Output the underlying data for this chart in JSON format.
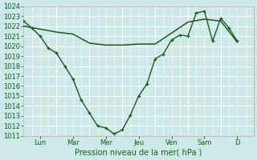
{
  "background_color": "#cde8e8",
  "grid_color_major": "#ffffff",
  "grid_color_minor": "#ddeaea",
  "line_color": "#1a5c1a",
  "ylabel": "Pression niveau de la mer( hPa )",
  "ylim": [
    1011,
    1024
  ],
  "yticks": [
    1011,
    1012,
    1013,
    1014,
    1015,
    1016,
    1017,
    1018,
    1019,
    1020,
    1021,
    1022,
    1023,
    1024
  ],
  "day_labels": [
    "Lun",
    "Mar",
    "Mer",
    "Jeu",
    "Ven",
    "Sam",
    "D"
  ],
  "day_tick_positions": [
    0.5,
    1.5,
    2.5,
    3.5,
    4.5,
    5.5,
    6.5
  ],
  "vline_positions": [
    0,
    1,
    2,
    3,
    4,
    5,
    6,
    7
  ],
  "x_zigzag": [
    0.0,
    0.25,
    0.5,
    0.75,
    1.0,
    1.25,
    1.5,
    1.75,
    2.0,
    2.25,
    2.5,
    2.75,
    3.0,
    3.25,
    3.5,
    3.75,
    4.0,
    4.25,
    4.5,
    4.75,
    5.0,
    5.25,
    5.5,
    5.75,
    6.0,
    6.25,
    6.5
  ],
  "y_zigzag": [
    1022.5,
    1021.8,
    1021.0,
    1019.8,
    1019.3,
    1018.0,
    1016.7,
    1014.6,
    1013.3,
    1012.0,
    1011.8,
    1011.2,
    1011.6,
    1013.1,
    1015.0,
    1016.2,
    1018.7,
    1019.2,
    1020.6,
    1021.1,
    1021.0,
    1023.3,
    1023.5,
    1020.5,
    1022.8,
    1021.8,
    1020.5
  ],
  "x_flat": [
    0.0,
    0.5,
    1.0,
    1.5,
    2.0,
    2.5,
    3.0,
    3.5,
    4.0,
    4.5,
    5.0,
    5.5,
    6.0,
    6.5
  ],
  "y_flat": [
    1022.0,
    1021.7,
    1021.4,
    1021.2,
    1020.3,
    1020.1,
    1020.1,
    1020.2,
    1020.2,
    1021.3,
    1022.4,
    1022.7,
    1022.5,
    1020.4
  ],
  "font_size": 7,
  "tick_fontsize": 6,
  "label_color": "#1a5c1a"
}
